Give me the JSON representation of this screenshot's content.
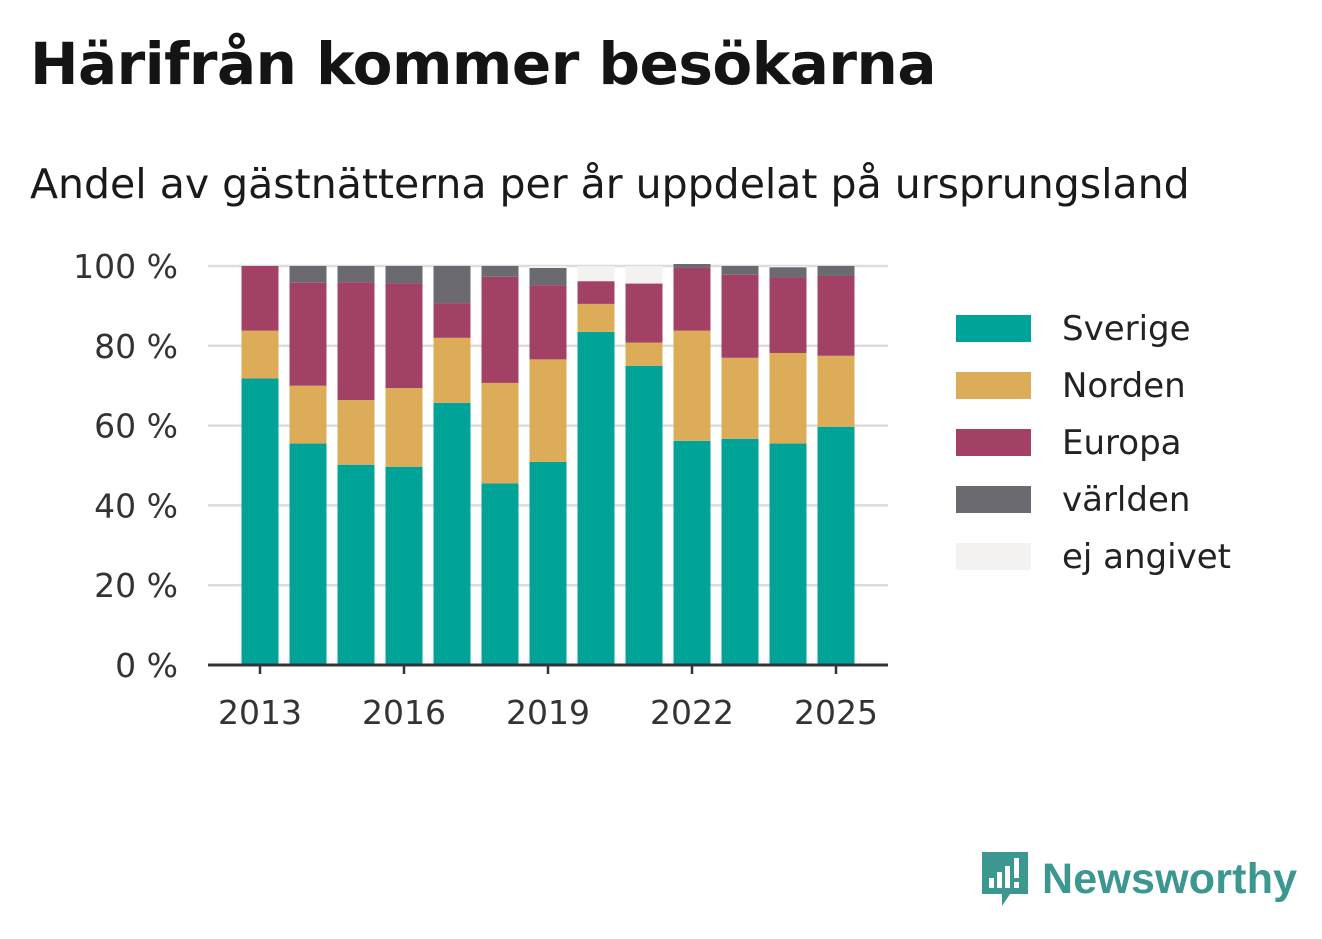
{
  "title": "Härifrån kommer besökarna",
  "subtitle": "Andel av gästnätterna per år uppdelat på ursprungsland",
  "brand": {
    "name": "Newsworthy",
    "icon": "newsworthy-logo-icon",
    "color": "#3d9791"
  },
  "chart_data": {
    "type": "bar",
    "stacked": true,
    "title": "Härifrån kommer besökarna",
    "subtitle": "Andel av gästnätterna per år uppdelat på ursprungsland",
    "categories": [
      "2013",
      "2014",
      "2015",
      "2016",
      "2017",
      "2018",
      "2019",
      "2020",
      "2021",
      "2022",
      "2023",
      "2024",
      "2025"
    ],
    "x_tick_labels": [
      "2013",
      "2016",
      "2019",
      "2022",
      "2025"
    ],
    "y_tick_labels": [
      "0 %",
      "20 %",
      "40 %",
      "60 %",
      "80 %",
      "100 %"
    ],
    "y_ticks": [
      0,
      20,
      40,
      60,
      80,
      100
    ],
    "ylim": [
      0,
      100
    ],
    "grid": true,
    "legend_position": "right",
    "series": [
      {
        "name": "Sverige",
        "color": "#00a398",
        "values": [
          71.8,
          55.5,
          50.2,
          49.7,
          65.7,
          45.5,
          50.9,
          83.5,
          75.0,
          56.2,
          56.7,
          55.5,
          59.7
        ]
      },
      {
        "name": "Norden",
        "color": "#dcac58",
        "values": [
          12.0,
          14.5,
          16.2,
          19.7,
          16.3,
          25.2,
          25.7,
          7.0,
          5.8,
          27.6,
          20.3,
          22.7,
          17.8
        ]
      },
      {
        "name": "Europa",
        "color": "#a34066",
        "values": [
          16.2,
          25.8,
          29.5,
          26.3,
          8.7,
          26.6,
          18.6,
          5.7,
          14.8,
          15.8,
          20.8,
          18.9,
          20.0
        ]
      },
      {
        "name": "världen",
        "color": "#6b6a70",
        "values": [
          0.0,
          4.2,
          4.1,
          4.3,
          9.3,
          2.7,
          4.3,
          0.0,
          0.0,
          0.9,
          2.2,
          2.6,
          2.5
        ]
      },
      {
        "name": "ej angivet",
        "color": "#f3f2f1",
        "values": [
          0.0,
          0.0,
          0.0,
          0.0,
          0.0,
          0.0,
          0.5,
          3.8,
          4.4,
          0.0,
          0.0,
          0.3,
          0.0
        ]
      }
    ]
  }
}
